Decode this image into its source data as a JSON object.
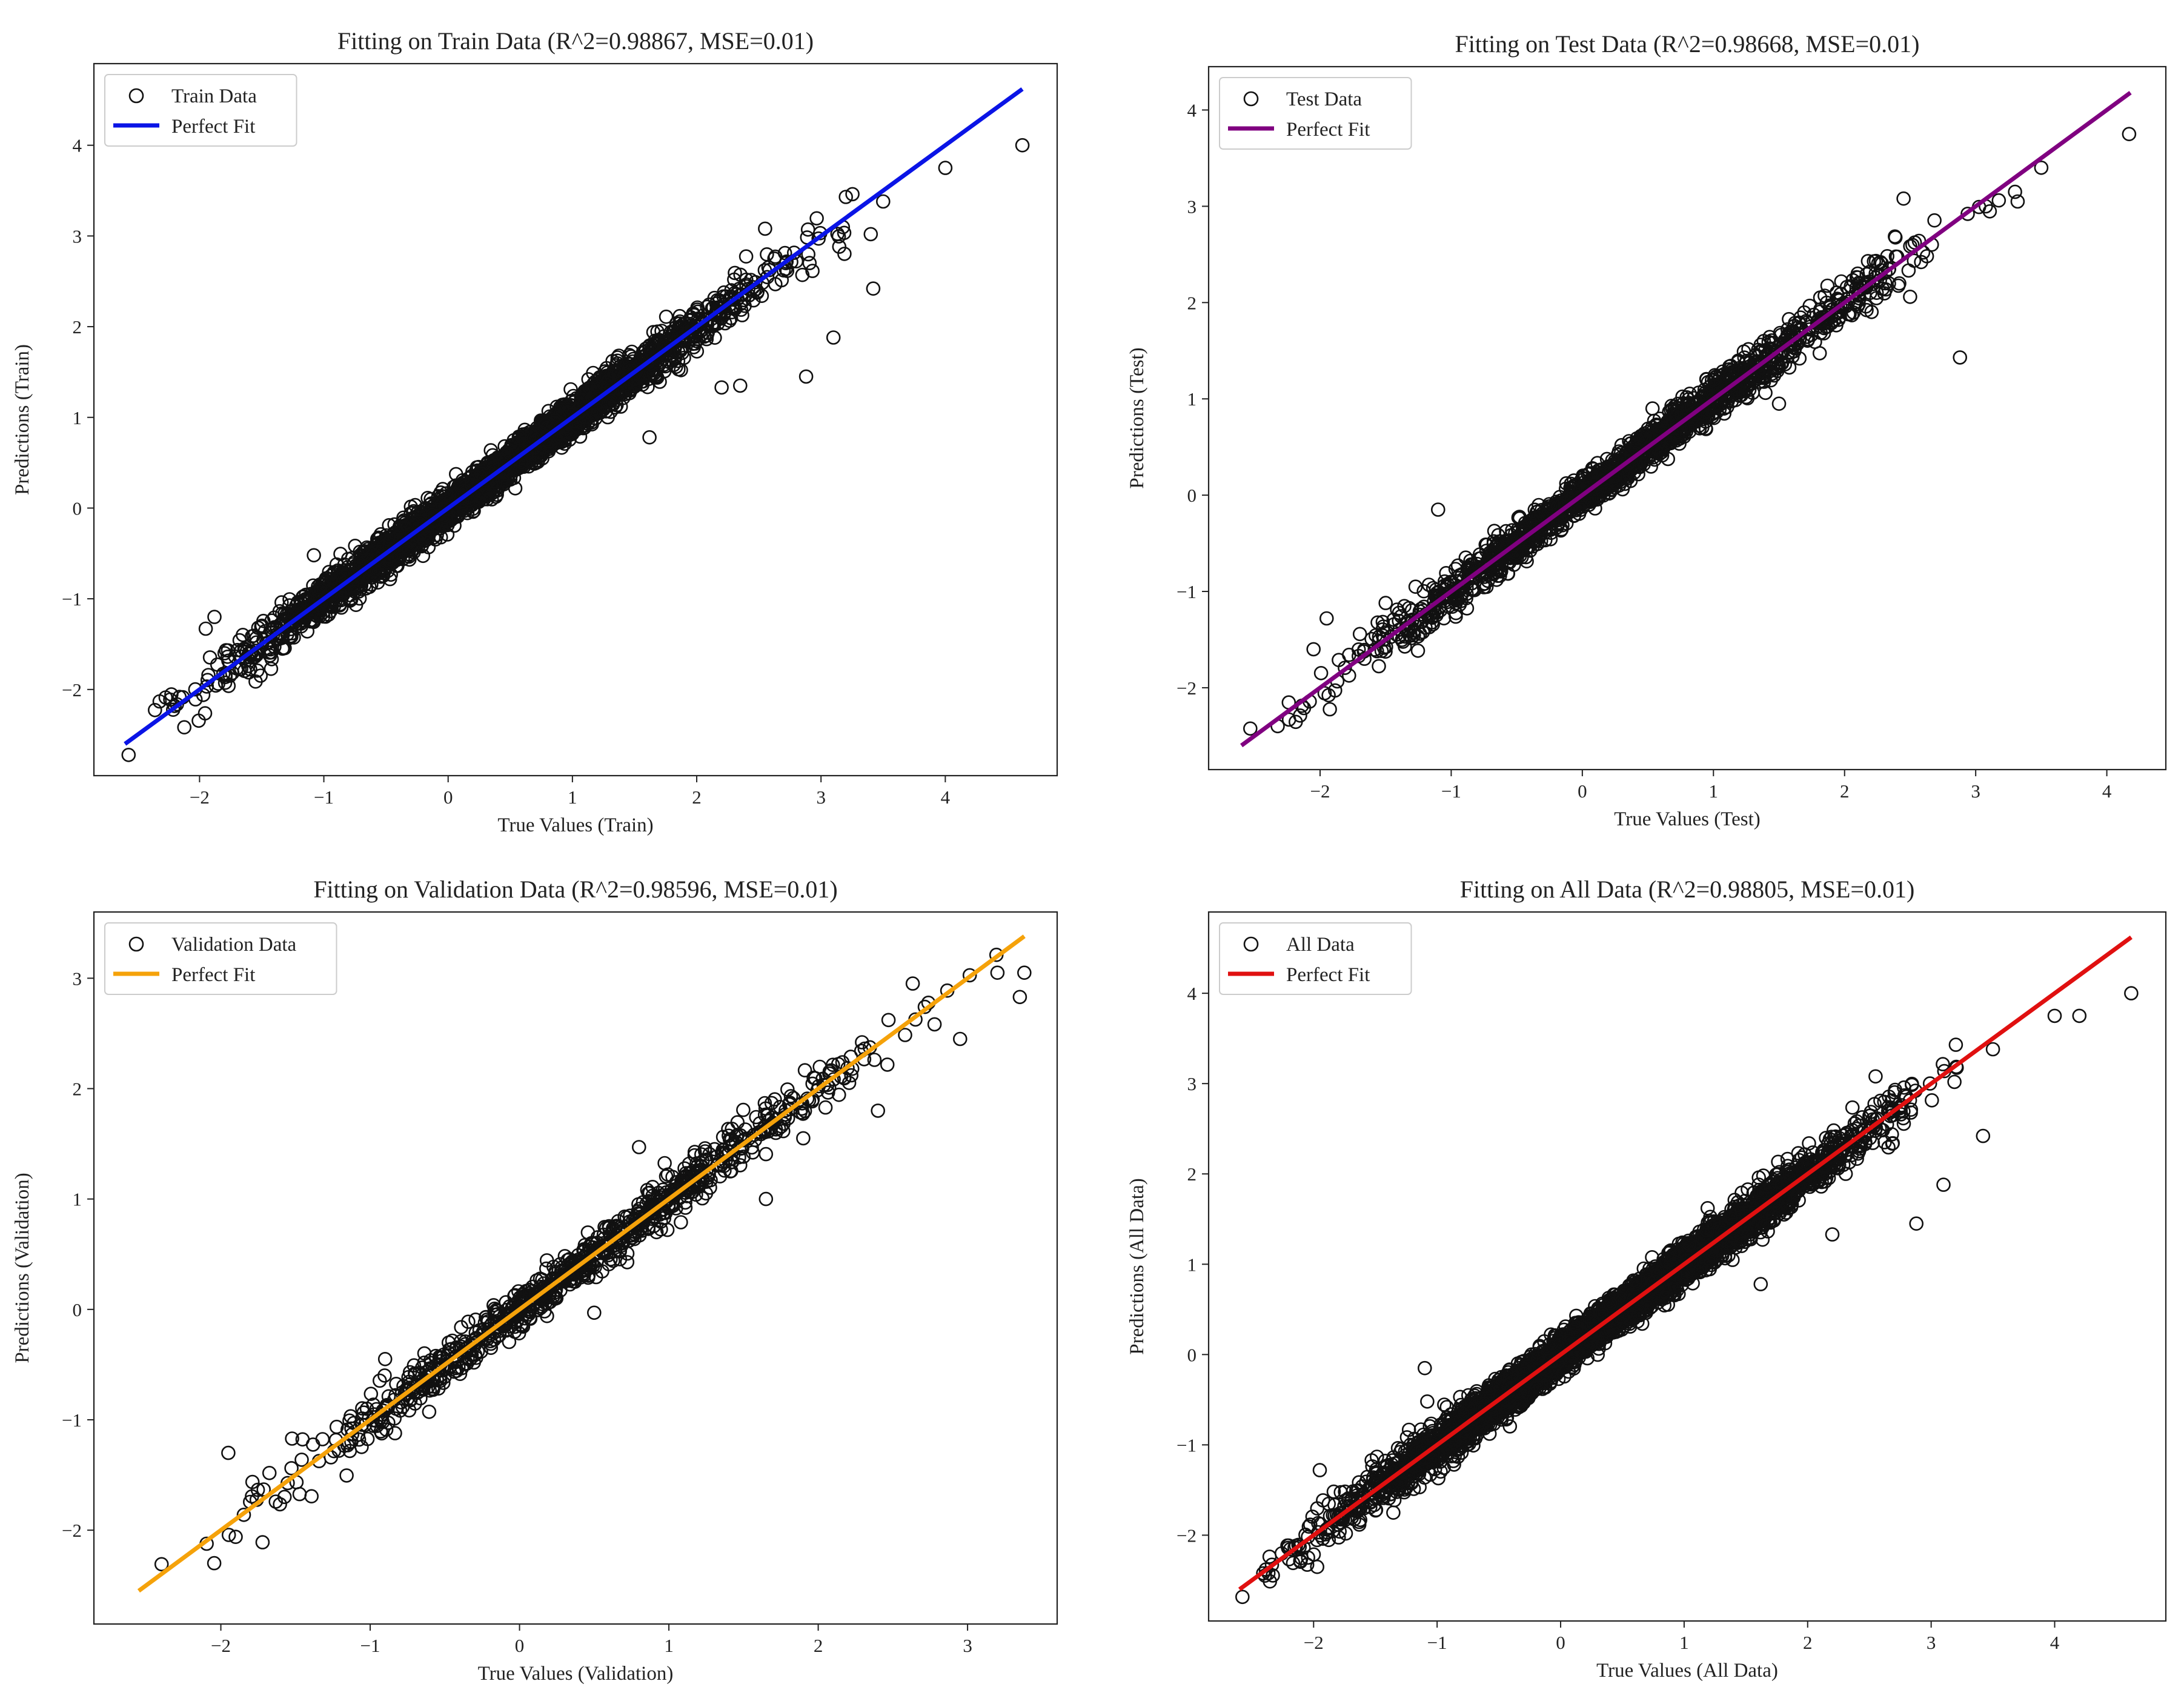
{
  "chart_data": [
    {
      "type": "scatter",
      "title": "Fitting on Train Data (R^2=0.98867, MSE=0.01)",
      "xlabel": "True Values (Train)",
      "ylabel": "Predictions (Train)",
      "xlim": [
        -2.85,
        4.9
      ],
      "ylim": [
        -2.95,
        4.9
      ],
      "xticks": [
        -2,
        -1,
        0,
        1,
        2,
        3,
        4
      ],
      "yticks": [
        -2,
        -1,
        0,
        1,
        2,
        3,
        4
      ],
      "legend": {
        "position": "top-left",
        "scatter_label": "Train Data",
        "line_label": "Perfect Fit"
      },
      "line_color": "#0a14e6",
      "fit_line": {
        "x": [
          -2.6,
          4.62
        ],
        "y": [
          -2.6,
          4.62
        ]
      },
      "n_points": 3200,
      "spread": 0.09,
      "outliers": [
        {
          "x": 4.0,
          "y": 3.75
        },
        {
          "x": 4.62,
          "y": 4.0
        },
        {
          "x": 3.1,
          "y": 1.88
        },
        {
          "x": 2.88,
          "y": 1.45
        },
        {
          "x": 3.42,
          "y": 2.42
        },
        {
          "x": 3.2,
          "y": 3.43
        },
        {
          "x": 3.5,
          "y": 3.38
        },
        {
          "x": 3.4,
          "y": 3.02
        },
        {
          "x": 2.2,
          "y": 1.33
        },
        {
          "x": 2.35,
          "y": 1.35
        },
        {
          "x": 1.62,
          "y": 0.78
        },
        {
          "x": -1.88,
          "y": -1.2
        },
        {
          "x": -1.95,
          "y": -1.33
        },
        {
          "x": 2.55,
          "y": 3.08
        },
        {
          "x": -1.08,
          "y": -0.52
        }
      ]
    },
    {
      "type": "scatter",
      "title": "Fitting on Test Data (R^2=0.98668, MSE=0.01)",
      "xlabel": "True Values (Test)",
      "ylabel": "Predictions (Test)",
      "xlim": [
        -2.85,
        4.45
      ],
      "ylim": [
        -2.85,
        4.45
      ],
      "xticks": [
        -2,
        -1,
        0,
        1,
        2,
        3,
        4
      ],
      "yticks": [
        -2,
        -1,
        0,
        1,
        2,
        3,
        4
      ],
      "legend": {
        "position": "top-left",
        "scatter_label": "Test Data",
        "line_label": "Perfect Fit"
      },
      "line_color": "#800080",
      "fit_line": {
        "x": [
          -2.6,
          4.18
        ],
        "y": [
          -2.6,
          4.18
        ]
      },
      "n_points": 1700,
      "spread": 0.09,
      "outliers": [
        {
          "x": 4.17,
          "y": 3.75
        },
        {
          "x": 3.5,
          "y": 3.4
        },
        {
          "x": 3.3,
          "y": 3.15
        },
        {
          "x": 2.88,
          "y": 1.43
        },
        {
          "x": 2.45,
          "y": 3.08
        },
        {
          "x": 2.1,
          "y": 2.3
        },
        {
          "x": 2.5,
          "y": 2.06
        },
        {
          "x": 1.5,
          "y": 0.95
        },
        {
          "x": -1.1,
          "y": -0.15
        },
        {
          "x": -1.95,
          "y": -1.28
        },
        {
          "x": -2.05,
          "y": -1.6
        },
        {
          "x": -1.5,
          "y": -1.12
        },
        {
          "x": 3.32,
          "y": 3.05
        }
      ]
    },
    {
      "type": "scatter",
      "title": "Fitting on Validation Data (R^2=0.98596, MSE=0.01)",
      "xlabel": "True Values (Validation)",
      "ylabel": "Predictions (Validation)",
      "xlim": [
        -2.85,
        3.6
      ],
      "ylim": [
        -2.85,
        3.6
      ],
      "xticks": [
        -2,
        -1,
        0,
        1,
        2,
        3
      ],
      "yticks": [
        -2,
        -1,
        0,
        1,
        2,
        3
      ],
      "legend": {
        "position": "top-left",
        "scatter_label": "Validation Data",
        "line_label": "Perfect Fit"
      },
      "line_color": "#f5a20a",
      "fit_line": {
        "x": [
          -2.55,
          3.38
        ],
        "y": [
          -2.55,
          3.38
        ]
      },
      "n_points": 900,
      "spread": 0.09,
      "outliers": [
        {
          "x": 3.38,
          "y": 3.05
        },
        {
          "x": 3.35,
          "y": 2.83
        },
        {
          "x": 2.95,
          "y": 2.45
        },
        {
          "x": -1.95,
          "y": -1.3
        },
        {
          "x": 0.5,
          "y": -0.03
        },
        {
          "x": 0.8,
          "y": 1.47
        },
        {
          "x": 1.9,
          "y": 1.55
        },
        {
          "x": 2.4,
          "y": 1.8
        },
        {
          "x": 1.65,
          "y": 1.0
        },
        {
          "x": -0.9,
          "y": -0.45
        },
        {
          "x": 3.2,
          "y": 3.05
        }
      ]
    },
    {
      "type": "scatter",
      "title": "Fitting on All Data (R^2=0.98805, MSE=0.01)",
      "xlabel": "True Values (All Data)",
      "ylabel": "Predictions (All Data)",
      "xlim": [
        -2.85,
        4.9
      ],
      "ylim": [
        -2.95,
        4.9
      ],
      "xticks": [
        -2,
        -1,
        0,
        1,
        2,
        3,
        4
      ],
      "yticks": [
        -2,
        -1,
        0,
        1,
        2,
        3,
        4
      ],
      "legend": {
        "position": "top-left",
        "scatter_label": "All Data",
        "line_label": "Perfect Fit"
      },
      "line_color": "#e01010",
      "fit_line": {
        "x": [
          -2.6,
          4.62
        ],
        "y": [
          -2.6,
          4.62
        ]
      },
      "n_points": 5200,
      "spread": 0.09,
      "outliers": [
        {
          "x": 4.0,
          "y": 3.75
        },
        {
          "x": 4.2,
          "y": 3.75
        },
        {
          "x": 4.62,
          "y": 4.0
        },
        {
          "x": 3.1,
          "y": 1.88
        },
        {
          "x": 2.88,
          "y": 1.45
        },
        {
          "x": 3.42,
          "y": 2.42
        },
        {
          "x": 3.2,
          "y": 3.43
        },
        {
          "x": 3.5,
          "y": 3.38
        },
        {
          "x": -1.1,
          "y": -0.15
        },
        {
          "x": -1.95,
          "y": -1.28
        },
        {
          "x": 2.55,
          "y": 3.08
        },
        {
          "x": 2.2,
          "y": 1.33
        },
        {
          "x": -1.08,
          "y": -0.52
        },
        {
          "x": 1.62,
          "y": 0.78
        }
      ]
    }
  ]
}
